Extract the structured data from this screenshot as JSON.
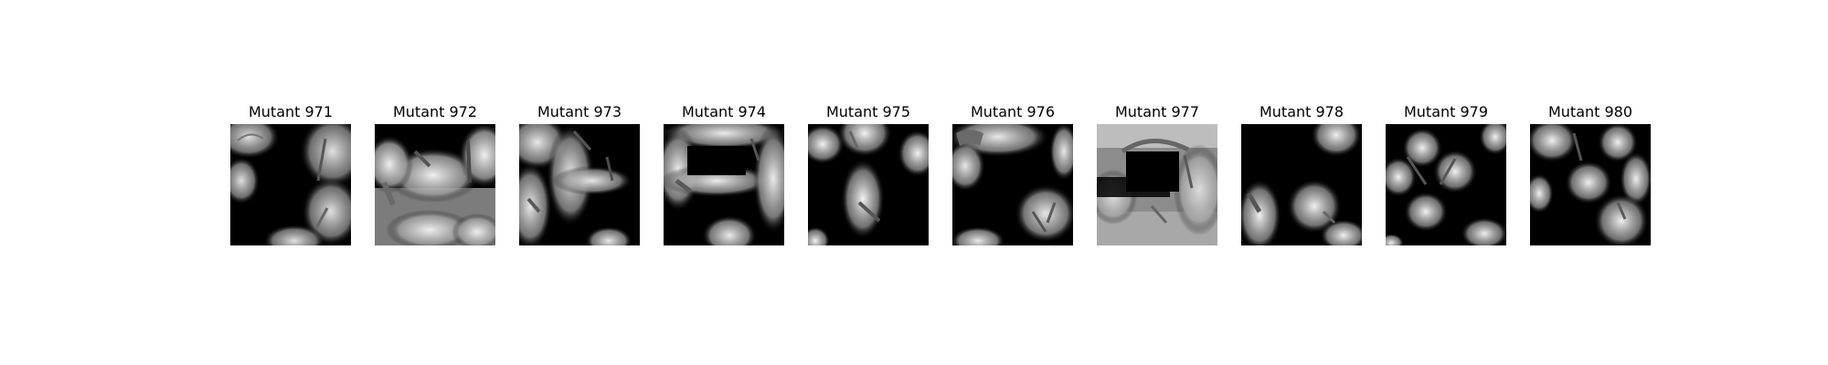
{
  "panels": [
    {
      "title": "Mutant 971",
      "mask_seed": 971
    },
    {
      "title": "Mutant 972",
      "mask_seed": 972
    },
    {
      "title": "Mutant 973",
      "mask_seed": 973
    },
    {
      "title": "Mutant 974",
      "mask_seed": 974
    },
    {
      "title": "Mutant 975",
      "mask_seed": 975
    },
    {
      "title": "Mutant 976",
      "mask_seed": 976
    },
    {
      "title": "Mutant 977",
      "mask_seed": 977
    },
    {
      "title": "Mutant 978",
      "mask_seed": 978
    },
    {
      "title": "Mutant 979",
      "mask_seed": 979
    },
    {
      "title": "Mutant 980",
      "mask_seed": 980
    }
  ],
  "colors": {
    "background": "#ffffff",
    "image_dark": "#000000",
    "image_light": "#e6e6e6",
    "title_text": "#000000"
  }
}
